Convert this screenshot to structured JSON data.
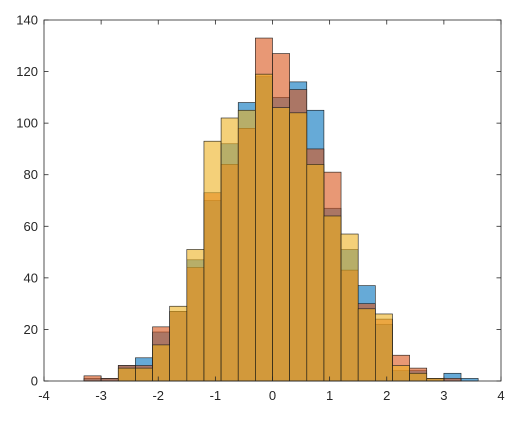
{
  "chart_data": {
    "type": "bar",
    "xlim": [
      -4,
      4
    ],
    "ylim": [
      0,
      140
    ],
    "xticks": [
      -4,
      -3,
      -2,
      -1,
      0,
      1,
      2,
      3,
      4
    ],
    "yticks": [
      0,
      20,
      40,
      60,
      80,
      100,
      120,
      140
    ],
    "bin_width": 0.3,
    "grid": false,
    "series": [
      {
        "color": "#0072BD",
        "bins": [
          {
            "x0": -3.3,
            "value": 1
          },
          {
            "x0": -3.0,
            "value": 1
          },
          {
            "x0": -2.7,
            "value": 6
          },
          {
            "x0": -2.4,
            "value": 9
          },
          {
            "x0": -2.1,
            "value": 19
          },
          {
            "x0": -1.8,
            "value": 27
          },
          {
            "x0": -1.5,
            "value": 47
          },
          {
            "x0": -1.2,
            "value": 70
          },
          {
            "x0": -0.9,
            "value": 92
          },
          {
            "x0": -0.6,
            "value": 108
          },
          {
            "x0": -0.3,
            "value": 118
          },
          {
            "x0": 0.0,
            "value": 110
          },
          {
            "x0": 0.3,
            "value": 116
          },
          {
            "x0": 0.6,
            "value": 105
          },
          {
            "x0": 0.9,
            "value": 67
          },
          {
            "x0": 1.2,
            "value": 51
          },
          {
            "x0": 1.5,
            "value": 37
          },
          {
            "x0": 1.8,
            "value": 22
          },
          {
            "x0": 2.1,
            "value": 4
          },
          {
            "x0": 2.4,
            "value": 4
          },
          {
            "x0": 2.7,
            "value": 1
          },
          {
            "x0": 3.0,
            "value": 3
          },
          {
            "x0": 3.3,
            "value": 1
          }
        ]
      },
      {
        "color": "#D95319",
        "bins": [
          {
            "x0": -3.3,
            "value": 2
          },
          {
            "x0": -3.0,
            "value": 1
          },
          {
            "x0": -2.7,
            "value": 6
          },
          {
            "x0": -2.4,
            "value": 6
          },
          {
            "x0": -2.1,
            "value": 21
          },
          {
            "x0": -1.8,
            "value": 27
          },
          {
            "x0": -1.5,
            "value": 44
          },
          {
            "x0": -1.2,
            "value": 73
          },
          {
            "x0": -0.9,
            "value": 84
          },
          {
            "x0": -0.6,
            "value": 98
          },
          {
            "x0": -0.3,
            "value": 133
          },
          {
            "x0": 0.0,
            "value": 127
          },
          {
            "x0": 0.3,
            "value": 113
          },
          {
            "x0": 0.6,
            "value": 90
          },
          {
            "x0": 0.9,
            "value": 81
          },
          {
            "x0": 1.2,
            "value": 43
          },
          {
            "x0": 1.5,
            "value": 30
          },
          {
            "x0": 1.8,
            "value": 24
          },
          {
            "x0": 2.1,
            "value": 10
          },
          {
            "x0": 2.4,
            "value": 5
          },
          {
            "x0": 2.7,
            "value": 1
          },
          {
            "x0": 3.0,
            "value": 1
          },
          {
            "x0": 3.3,
            "value": 0
          }
        ]
      },
      {
        "color": "#EDB120",
        "bins": [
          {
            "x0": -3.3,
            "value": 0
          },
          {
            "x0": -3.0,
            "value": 0
          },
          {
            "x0": -2.7,
            "value": 5
          },
          {
            "x0": -2.4,
            "value": 5
          },
          {
            "x0": -2.1,
            "value": 14
          },
          {
            "x0": -1.8,
            "value": 29
          },
          {
            "x0": -1.5,
            "value": 51
          },
          {
            "x0": -1.2,
            "value": 93
          },
          {
            "x0": -0.9,
            "value": 102
          },
          {
            "x0": -0.6,
            "value": 105
          },
          {
            "x0": -0.3,
            "value": 119
          },
          {
            "x0": 0.0,
            "value": 106
          },
          {
            "x0": 0.3,
            "value": 104
          },
          {
            "x0": 0.6,
            "value": 84
          },
          {
            "x0": 0.9,
            "value": 64
          },
          {
            "x0": 1.2,
            "value": 57
          },
          {
            "x0": 1.5,
            "value": 28
          },
          {
            "x0": 1.8,
            "value": 26
          },
          {
            "x0": 2.1,
            "value": 6
          },
          {
            "x0": 2.4,
            "value": 3
          },
          {
            "x0": 2.7,
            "value": 1
          },
          {
            "x0": 3.0,
            "value": 0
          },
          {
            "x0": 3.3,
            "value": 0
          }
        ]
      }
    ]
  }
}
